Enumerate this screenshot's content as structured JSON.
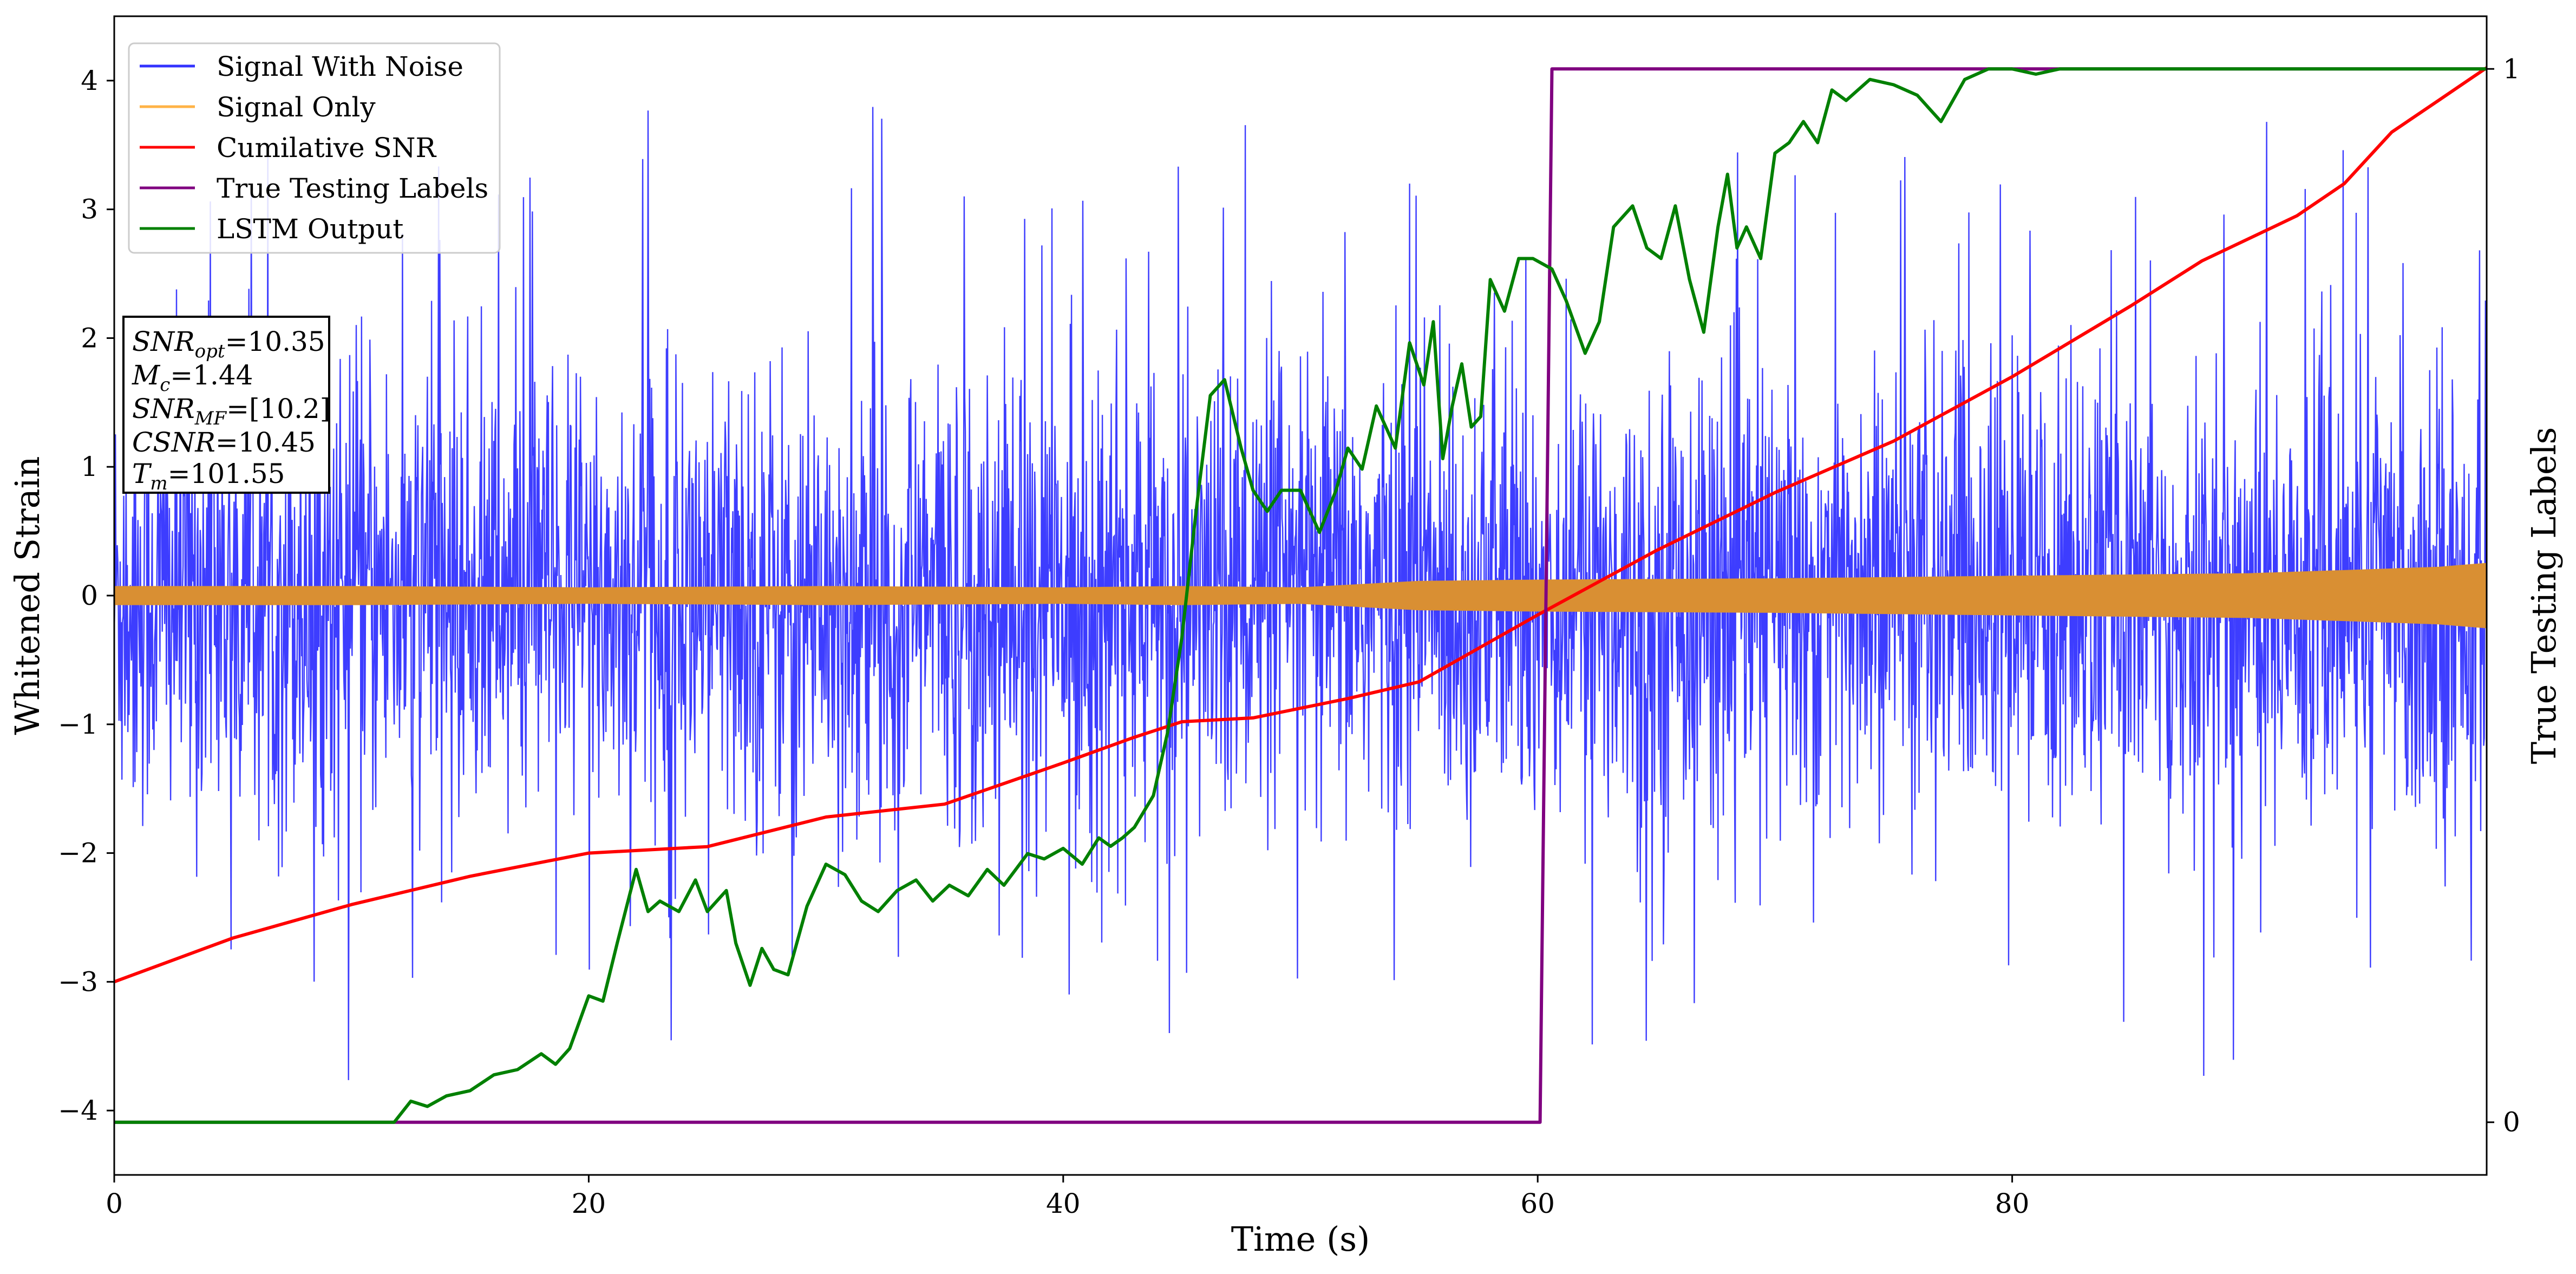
{
  "chart_data": {
    "type": "line",
    "title": "",
    "xlabel": "Time (s)",
    "ylabel": "Whitened Strain",
    "y2label": "True Testing Labels",
    "xlim": [
      0,
      100
    ],
    "ylim": [
      -4.5,
      4.5
    ],
    "y2lim": [
      -0.05,
      1.05
    ],
    "grid": false,
    "legend_position": "top-left",
    "x_ticks": [
      0,
      20,
      40,
      60,
      80
    ],
    "y_ticks": [
      -4,
      -3,
      -2,
      -1,
      0,
      1,
      2,
      3,
      4
    ],
    "y2_ticks": [
      0,
      1
    ],
    "colors": {
      "signal_with_noise": "#3333ff",
      "signal_only": "#d98f33",
      "signal_only_legend": "#ffb347",
      "cumulative_snr": "#ff0000",
      "true_labels": "#800080",
      "lstm_output": "#008000",
      "axis": "#000000"
    },
    "legend": [
      "Signal With Noise",
      "Signal Only",
      "Cumilative SNR",
      "True Testing Labels",
      "LSTM Output"
    ],
    "annotation": {
      "snr_opt_label": "SNR",
      "snr_opt_sub": "opt",
      "snr_opt_value": "=10.35",
      "mc_label": "M",
      "mc_sub": "c",
      "mc_value": "=1.44",
      "snr_mf_label": "SNR",
      "snr_mf_sub": "MF",
      "snr_mf_value": "=[10.2]",
      "csnr_label": "CSNR",
      "csnr_value": "=10.45",
      "tm_label": "T",
      "tm_sub": "m",
      "tm_value": "=101.55"
    },
    "series": [
      {
        "name": "Signal With Noise",
        "axis": "left",
        "noise_extent": {
          "upper_typical": 2.0,
          "lower_typical": -2.0,
          "peak_max": 4.1,
          "peak_min": -3.95
        }
      },
      {
        "name": "Signal Only",
        "axis": "left",
        "envelope_x": [
          0,
          10,
          20,
          30,
          40,
          45,
          50,
          55,
          60,
          70,
          80,
          90,
          95,
          98,
          100
        ],
        "envelope_amp": [
          0.07,
          0.07,
          0.06,
          0.07,
          0.06,
          0.07,
          0.06,
          0.11,
          0.12,
          0.13,
          0.15,
          0.17,
          0.2,
          0.22,
          0.25
        ]
      },
      {
        "name": "Cumilative SNR",
        "axis": "left",
        "x": [
          0,
          5,
          10,
          15,
          20,
          25,
          30,
          35,
          40,
          43,
          45,
          48,
          52,
          55,
          60,
          65,
          70,
          75,
          80,
          85,
          88,
          92,
          94,
          96,
          98,
          100
        ],
        "y": [
          -3.0,
          -2.66,
          -2.4,
          -2.18,
          -2.0,
          -1.95,
          -1.72,
          -1.62,
          -1.3,
          -1.1,
          -0.98,
          -0.95,
          -0.8,
          -0.67,
          -0.15,
          0.35,
          0.8,
          1.2,
          1.7,
          2.25,
          2.6,
          2.95,
          3.2,
          3.6,
          3.85,
          4.1
        ]
      },
      {
        "name": "True Testing Labels",
        "axis": "right",
        "x": [
          0,
          60.1,
          60.6,
          100
        ],
        "y": [
          0,
          0,
          1,
          1
        ]
      },
      {
        "name": "LSTM Output",
        "axis": "right",
        "x": [
          0,
          11.8,
          12.5,
          13.2,
          14,
          15,
          16,
          17,
          18,
          18.6,
          19.2,
          20,
          20.6,
          21.2,
          22,
          22.5,
          23,
          23.8,
          24.5,
          25,
          25.8,
          26.2,
          26.8,
          27.3,
          27.8,
          28.4,
          29.2,
          30,
          30.8,
          31.5,
          32.2,
          33,
          33.8,
          34.5,
          35.2,
          36,
          36.8,
          37.5,
          38.5,
          39.2,
          40,
          40.8,
          41.5,
          42,
          42.5,
          43,
          43.8,
          44.4,
          45,
          45.6,
          46.2,
          46.8,
          47.5,
          48,
          48.6,
          49.2,
          50,
          50.8,
          51.5,
          52,
          52.6,
          53.2,
          54,
          54.6,
          55.2,
          55.6,
          56,
          56.4,
          56.8,
          57.2,
          57.6,
          58,
          58.6,
          59.2,
          59.8,
          60.6,
          61.2,
          62,
          62.6,
          63.2,
          64,
          64.6,
          65.2,
          65.8,
          66.4,
          67,
          67.6,
          68,
          68.4,
          68.8,
          69.4,
          70,
          70.6,
          71.2,
          71.8,
          72.4,
          73,
          74,
          75,
          76,
          77,
          78,
          79,
          80,
          81,
          82,
          84,
          86,
          88,
          90,
          100
        ],
        "y": [
          0,
          0,
          0.02,
          0.015,
          0.025,
          0.03,
          0.045,
          0.05,
          0.065,
          0.055,
          0.07,
          0.12,
          0.115,
          0.17,
          0.24,
          0.2,
          0.21,
          0.2,
          0.23,
          0.2,
          0.22,
          0.17,
          0.13,
          0.165,
          0.145,
          0.14,
          0.205,
          0.245,
          0.235,
          0.21,
          0.2,
          0.22,
          0.23,
          0.21,
          0.225,
          0.215,
          0.24,
          0.225,
          0.255,
          0.25,
          0.26,
          0.245,
          0.27,
          0.262,
          0.27,
          0.28,
          0.31,
          0.37,
          0.46,
          0.58,
          0.69,
          0.705,
          0.64,
          0.6,
          0.58,
          0.6,
          0.6,
          0.56,
          0.6,
          0.64,
          0.62,
          0.68,
          0.64,
          0.74,
          0.7,
          0.76,
          0.63,
          0.68,
          0.72,
          0.66,
          0.67,
          0.8,
          0.77,
          0.82,
          0.82,
          0.81,
          0.78,
          0.73,
          0.76,
          0.85,
          0.87,
          0.83,
          0.82,
          0.87,
          0.8,
          0.75,
          0.85,
          0.9,
          0.83,
          0.85,
          0.82,
          0.92,
          0.93,
          0.95,
          0.93,
          0.98,
          0.97,
          0.99,
          0.985,
          0.975,
          0.95,
          0.99,
          1.0,
          1.0,
          0.995,
          1.0,
          1.0,
          1.0,
          1.0,
          1.0,
          1.0
        ]
      }
    ]
  }
}
